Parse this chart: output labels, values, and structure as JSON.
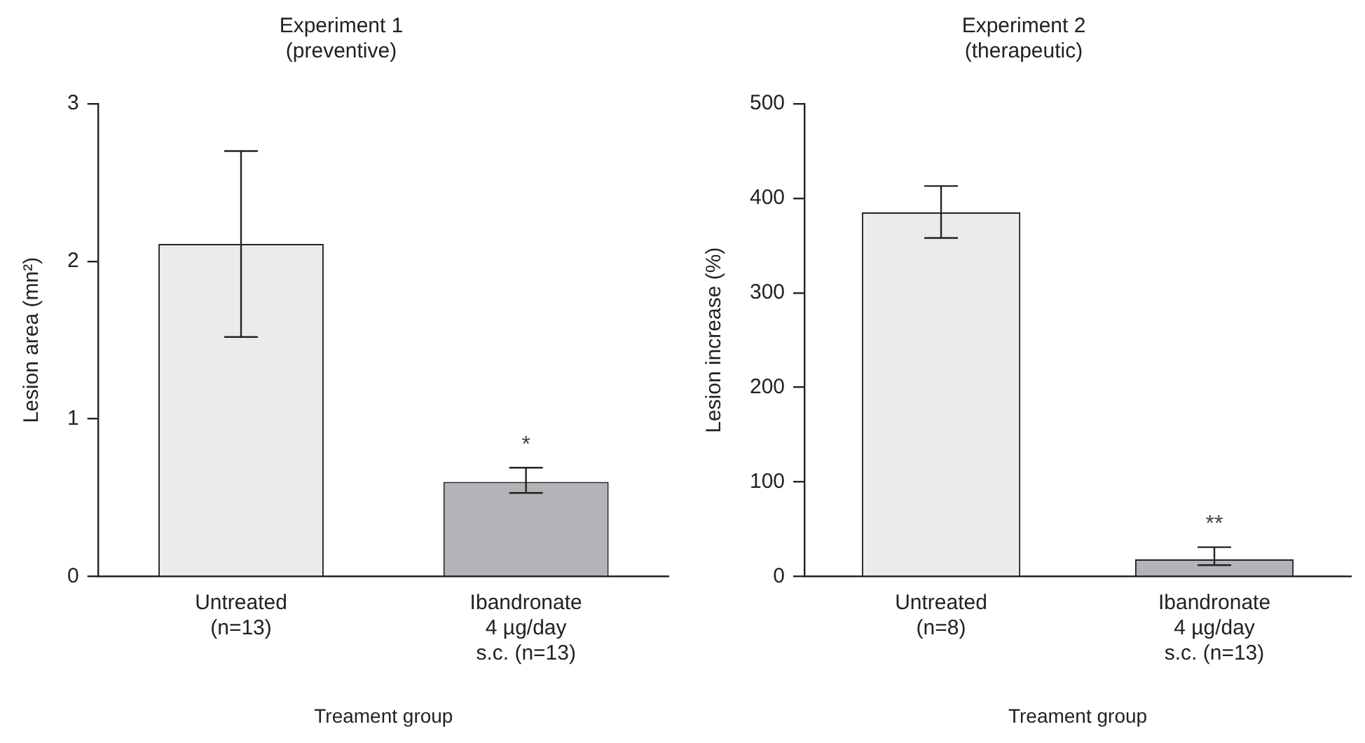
{
  "chart_data": [
    {
      "type": "bar",
      "title": "Experiment 1\n(preventive)",
      "xlabel": "Treament group",
      "ylabel": "Lesion area (mn²)",
      "categories": [
        "Untreated\n(n=13)",
        "Ibandronate\n4 µg/day\ns.c. (n=13)"
      ],
      "values": [
        2.11,
        0.6
      ],
      "colors": [
        "#ebebeb",
        "#b3b4b7"
      ],
      "errors": [
        [
          1.52,
          2.7
        ],
        [
          0.53,
          0.69
        ]
      ],
      "ylim": [
        0,
        3
      ],
      "yticks": [
        0,
        1,
        2,
        3
      ],
      "grid": false,
      "legend": false,
      "annotations": [
        "*"
      ]
    },
    {
      "type": "bar",
      "title": "Experiment 2\n(therapeutic)",
      "xlabel": "Treament group",
      "ylabel": "Lesion increase (%)",
      "categories": [
        "Untreated\n(n=8)",
        "Ibandronate\n4 µg/day\ns.c. (n=13)"
      ],
      "values": [
        385,
        18
      ],
      "colors": [
        "#ebebeb",
        "#b3b4b7"
      ],
      "errors": [
        [
          358,
          413
        ],
        [
          12,
          31
        ]
      ],
      "ylim": [
        0,
        500
      ],
      "yticks": [
        0,
        100,
        200,
        300,
        400,
        500
      ],
      "grid": false,
      "legend": false,
      "annotations": [
        "**"
      ]
    }
  ]
}
